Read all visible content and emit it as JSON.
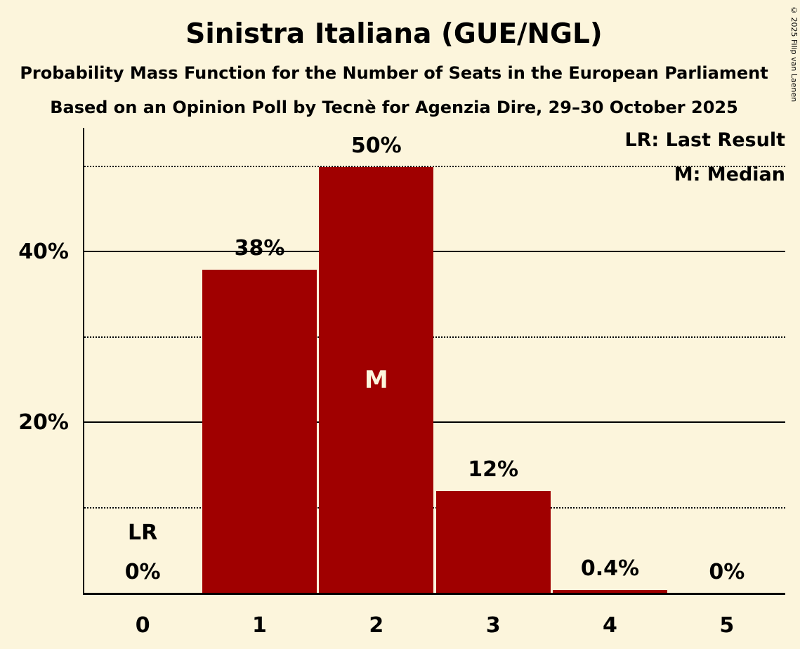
{
  "copyright": "© 2025 Filip van Laenen",
  "legend": {
    "last_result": "LR: Last Result",
    "median": "M: Median"
  },
  "colors": {
    "background": "#FCF5DC",
    "bar": "#A00000",
    "text": "#000000",
    "median_text": "#FCF5DC"
  },
  "chart_data": {
    "type": "bar",
    "title": "Sinistra Italiana (GUE/NGL)",
    "subtitle": "Probability Mass Function for the Number of Seats in the European Parliament",
    "subsubtitle": "Based on an Opinion Poll by Tecnè for Agenzia Dire, 29–30 October 2025",
    "categories": [
      "0",
      "1",
      "2",
      "3",
      "4",
      "5"
    ],
    "values": [
      0,
      38,
      50,
      12,
      0.4,
      0
    ],
    "value_labels": [
      "0%",
      "38%",
      "50%",
      "12%",
      "0.4%",
      "0%"
    ],
    "ylim": [
      0,
      54.6
    ],
    "yticks": [
      {
        "value": 20,
        "label": "20%"
      },
      {
        "value": 40,
        "label": "40%"
      }
    ],
    "gridlines_solid": [
      20,
      40
    ],
    "gridlines_dotted": [
      10,
      30,
      50
    ],
    "legend_position": "top-right",
    "grid": true,
    "annotations": {
      "last_result": {
        "seat_index": 0,
        "label": "LR"
      },
      "median": {
        "seat_index": 2,
        "label": "M"
      }
    }
  }
}
